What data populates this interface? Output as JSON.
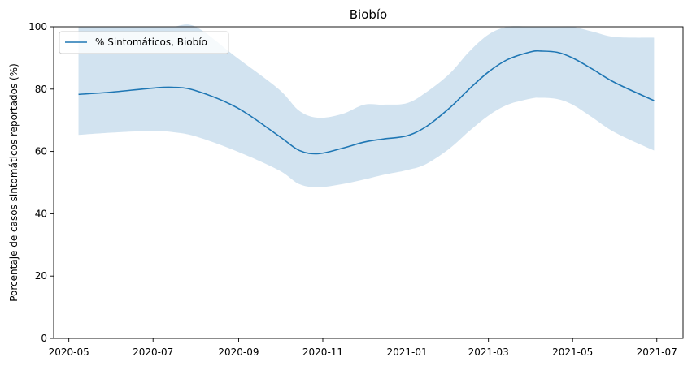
{
  "chart_data": {
    "type": "line",
    "title": "Biobío",
    "xlabel": "",
    "ylabel": "Porcentaje de casos sintomáticos reportados (%)",
    "xlim": [
      "2020-04-20",
      "2021-07-20"
    ],
    "ylim": [
      0,
      100
    ],
    "x_ticks": [
      "2020-05",
      "2020-07",
      "2020-09",
      "2020-11",
      "2021-01",
      "2021-03",
      "2021-05",
      "2021-07"
    ],
    "y_ticks": [
      0,
      20,
      40,
      60,
      80,
      100
    ],
    "grid": false,
    "legend": {
      "placement": "top-left",
      "entries": [
        "% Sintomáticos, Biobío"
      ]
    },
    "colors": {
      "line": "#1f77b4",
      "band": "#a6c8e2"
    },
    "series": [
      {
        "name": "% Sintomáticos, Biobío",
        "x": [
          "2020-05-08",
          "2020-05-31",
          "2020-06-30",
          "2020-07-15",
          "2020-08-01",
          "2020-08-31",
          "2020-09-30",
          "2020-10-15",
          "2020-10-29",
          "2020-11-15",
          "2020-12-01",
          "2020-12-15",
          "2021-01-01",
          "2021-01-15",
          "2021-02-01",
          "2021-02-15",
          "2021-03-01",
          "2021-03-15",
          "2021-04-01",
          "2021-04-08",
          "2021-04-20",
          "2021-05-01",
          "2021-05-15",
          "2021-06-01",
          "2021-06-29"
        ],
        "values": [
          78.3,
          79.0,
          80.3,
          80.6,
          79.5,
          74.0,
          65.0,
          60.3,
          59.3,
          61.0,
          63.0,
          64.0,
          65.0,
          68.0,
          74.0,
          80.0,
          85.5,
          89.5,
          92.0,
          92.2,
          91.8,
          90.0,
          86.5,
          82.0,
          76.3
        ],
        "lower": [
          65.3,
          66.0,
          66.6,
          66.2,
          64.8,
          60.0,
          54.0,
          49.5,
          48.5,
          49.5,
          51.0,
          52.5,
          54.0,
          56.0,
          61.0,
          66.5,
          71.5,
          75.0,
          77.0,
          77.2,
          76.8,
          75.0,
          71.0,
          66.0,
          60.3
        ],
        "upper": [
          100.0,
          100.0,
          100.0,
          100.0,
          100.0,
          90.0,
          80.0,
          73.0,
          70.8,
          72.0,
          75.0,
          75.0,
          75.5,
          79.0,
          85.0,
          92.0,
          97.5,
          100.0,
          100.0,
          100.0,
          100.0,
          100.0,
          98.5,
          96.7,
          96.5
        ]
      }
    ]
  }
}
